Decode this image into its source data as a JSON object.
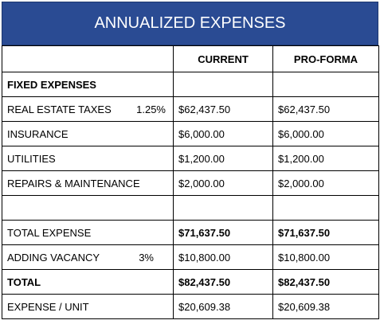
{
  "title": "ANNUALIZED EXPENSES",
  "table": {
    "header": {
      "current": "CURRENT",
      "pro_forma": "PRO-FORMA"
    },
    "rows": [
      {
        "label": "FIXED EXPENSES"
      },
      {
        "label": "REAL ESTATE TAXES",
        "rate": "1.25%",
        "current": "$62,437.50",
        "pro_forma": "$62,437.50"
      },
      {
        "label": "INSURANCE",
        "current": "$6,000.00",
        "pro_forma": "$6,000.00"
      },
      {
        "label": "UTILITIES",
        "current": "$1,200.00",
        "pro_forma": "$1,200.00"
      },
      {
        "label": "REPAIRS & MAINTENANCE",
        "current": "$2,000.00",
        "pro_forma": "$2,000.00"
      },
      {
        "label": "TOTAL EXPENSE",
        "current": "$71,637.50",
        "pro_forma": "$71,637.50"
      },
      {
        "label": "ADDING VACANCY",
        "rate": "3%",
        "current": "$10,800.00",
        "pro_forma": "$10,800.00"
      },
      {
        "label": "TOTAL",
        "current": "$82,437.50",
        "pro_forma": "$82,437.50"
      },
      {
        "label": "EXPENSE / UNIT",
        "current": "$20,609.38",
        "pro_forma": "$20,609.38"
      }
    ]
  }
}
